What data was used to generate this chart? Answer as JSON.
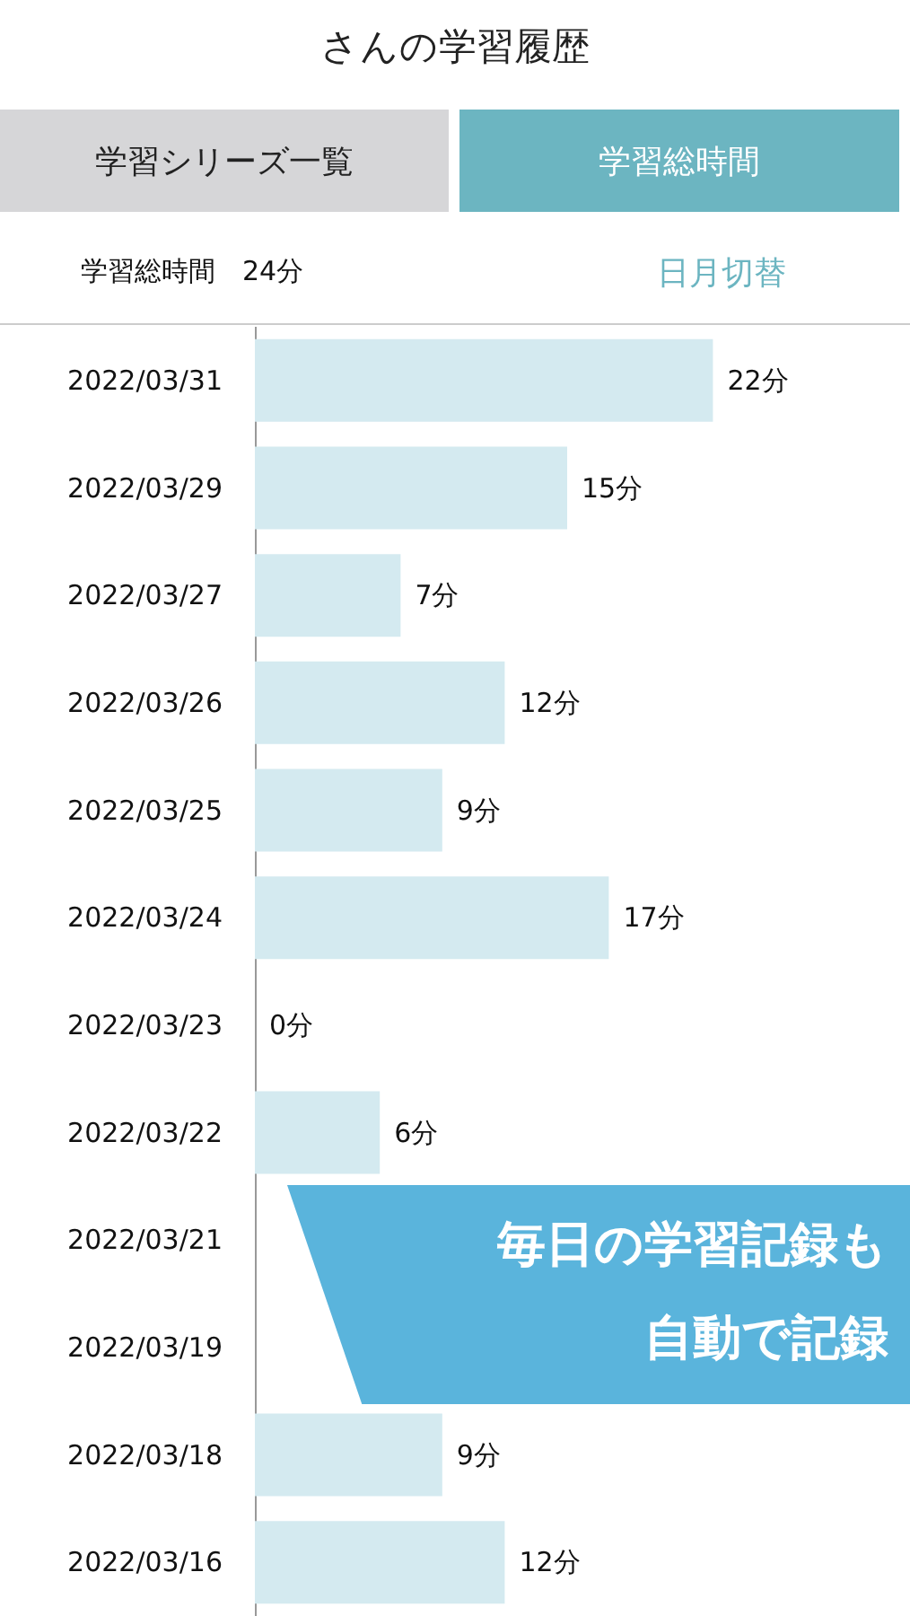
{
  "chart_data": {
    "type": "bar",
    "orientation": "horizontal",
    "title": "さんの学習履歴",
    "categories": [
      "2022/03/31",
      "2022/03/29",
      "2022/03/27",
      "2022/03/26",
      "2022/03/25",
      "2022/03/24",
      "2022/03/23",
      "2022/03/22",
      "2022/03/21",
      "2022/03/19",
      "2022/03/18",
      "2022/03/16"
    ],
    "values": [
      22,
      15,
      7,
      12,
      9,
      17,
      0,
      6,
      null,
      null,
      9,
      12
    ],
    "value_labels": [
      "22分",
      "15分",
      "7分",
      "12分",
      "9分",
      "17分",
      "0分",
      "6分",
      null,
      null,
      "9分",
      "12分"
    ],
    "color": "#d4eaf0",
    "annotations": [
      "学習シリーズ一覧",
      "学習総時間",
      "学習総時間　24分",
      "日月切替",
      "毎日の学習記録も",
      "自動で記録"
    ]
  }
}
